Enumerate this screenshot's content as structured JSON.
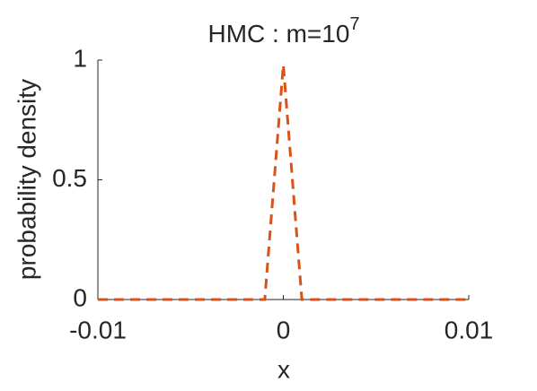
{
  "chart_data": {
    "type": "line",
    "title": "HMC : m=10",
    "title_exponent": "7",
    "x_label": "x",
    "y_label": "probability density",
    "x": [
      -0.01,
      -0.001,
      0,
      0.001,
      0.01
    ],
    "series": [
      {
        "color": "#d95319",
        "values": [
          0,
          0,
          0.98,
          0,
          0
        ]
      }
    ],
    "xlim": [
      -0.01,
      0.01
    ],
    "xticks": [
      -0.01,
      0,
      0.01
    ],
    "ylim": [
      0,
      1
    ],
    "yticks": [
      0,
      0.5,
      1
    ],
    "line_style": "dashed"
  }
}
